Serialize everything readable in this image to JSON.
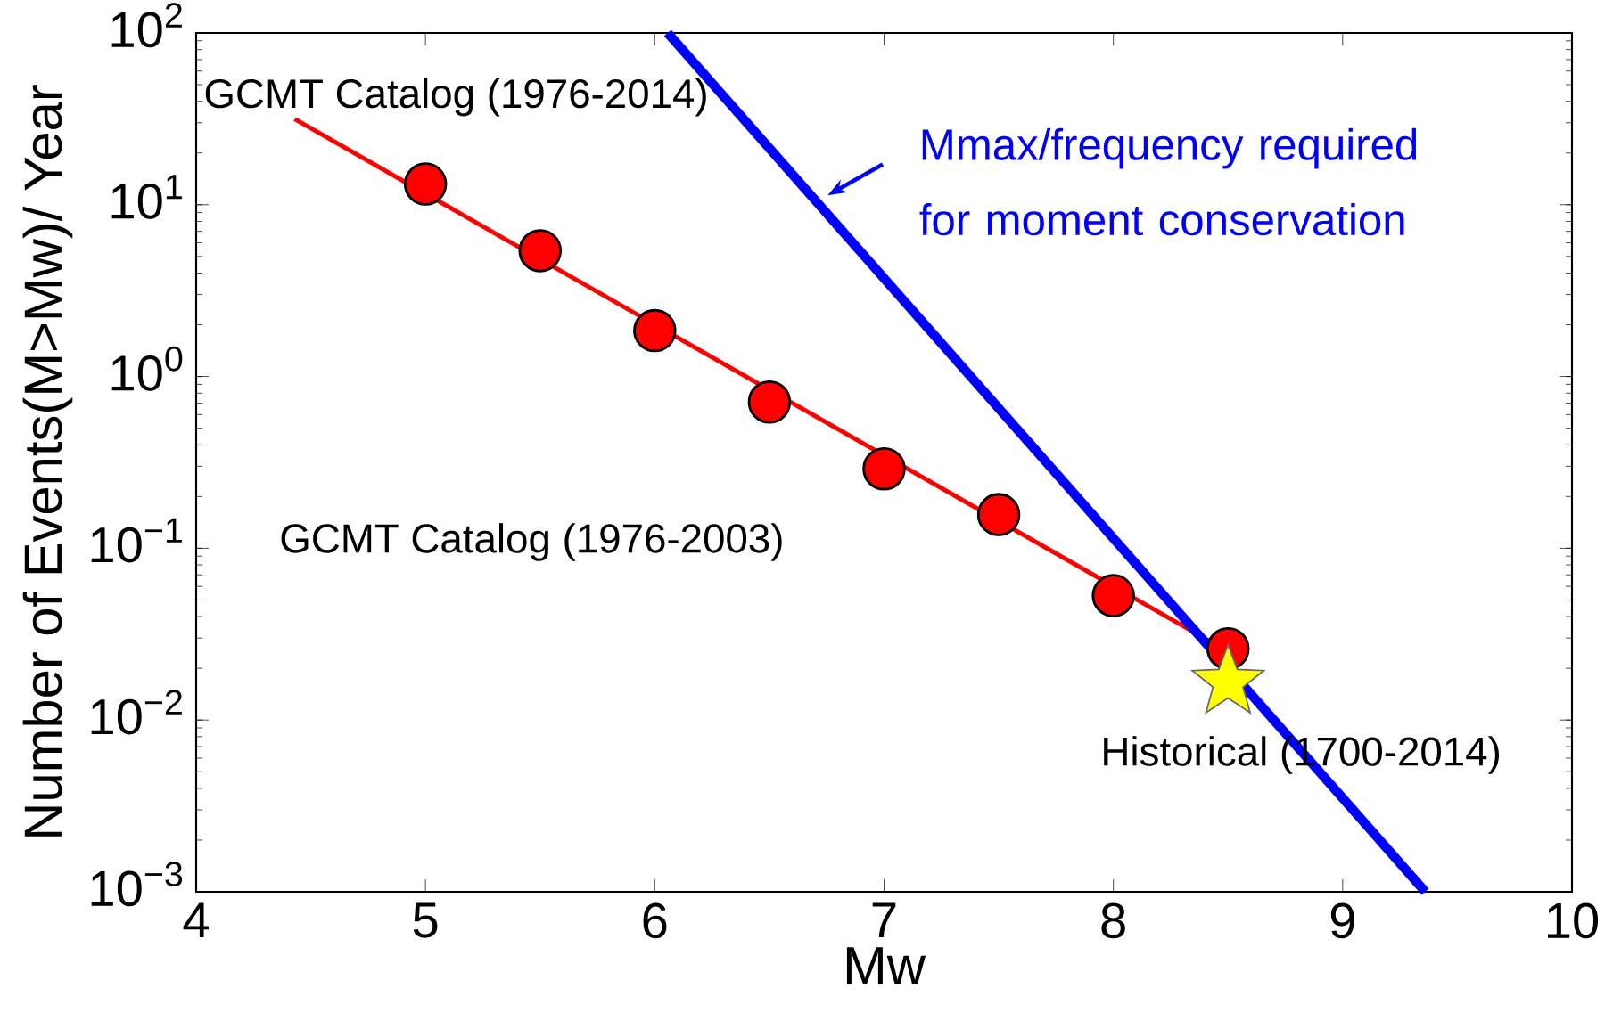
{
  "chart_data": {
    "type": "line",
    "xlabel": "Mw",
    "ylabel": "Number of Events(M>Mw)/ Year",
    "log": "y",
    "xlim": [
      4,
      10
    ],
    "ylim": [
      0.001,
      100
    ],
    "xticks": [
      4,
      5,
      6,
      7,
      8,
      9,
      10
    ],
    "yticks": [
      {
        "value": 0.001,
        "label": "10$^{−3}$"
      },
      {
        "value": 0.01,
        "label": "10$^{−2}$"
      },
      {
        "value": 0.1,
        "label": "10$^{−1}$"
      },
      {
        "value": 1,
        "label": "10$^{0}$"
      },
      {
        "value": 10,
        "label": "10$^{1}$"
      },
      {
        "value": 100,
        "label": "10$^{2}$"
      }
    ],
    "series": [
      {
        "name": "GCMT Catalog (1976-2014)",
        "type": "line",
        "color": "#ff0000",
        "x": [
          4.43,
          8.5
        ],
        "values": [
          31.5,
          0.025
        ],
        "marker": "none"
      },
      {
        "name": "GCMT Catalog (1976-2003)",
        "type": "scatter",
        "color": "#ff0000",
        "x": [
          5,
          5.5,
          6,
          6.5,
          7,
          7.5,
          8,
          8.5
        ],
        "values": [
          13.2,
          5.4,
          1.85,
          0.71,
          0.29,
          0.157,
          0.053,
          0.026
        ],
        "marker": "circle"
      },
      {
        "type": "line",
        "color": "#0000ff",
        "x": [
          6.056,
          9.36
        ],
        "values": [
          100,
          0.001
        ],
        "marker": "none"
      },
      {
        "name": "Historical (1700-2014)",
        "type": "scatter",
        "color": "#ffff00",
        "x": [
          8.5
        ],
        "values": [
          0.0166
        ],
        "marker": "star"
      }
    ],
    "annotations": [
      "Mmax/frequency required for moment conservation"
    ]
  }
}
